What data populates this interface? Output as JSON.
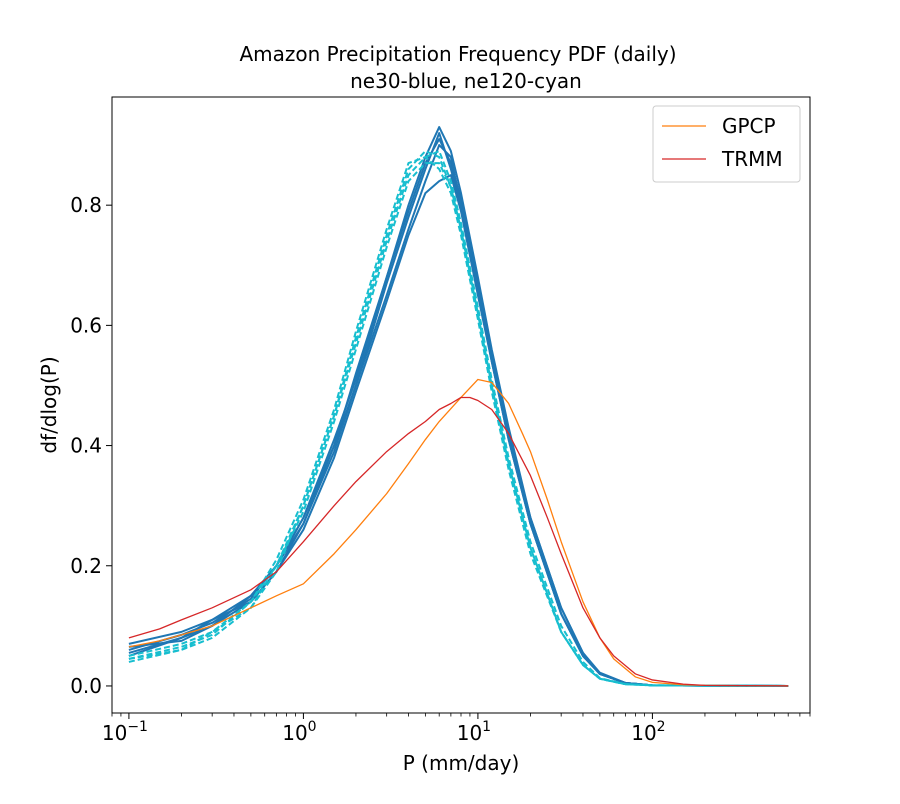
{
  "chart_data": {
    "type": "line",
    "title": "Amazon Precipitation Frequency PDF (daily)",
    "subtitle": "ne30-blue, ne120-cyan",
    "xlabel": "P (mm/day)",
    "ylabel": "df/dlog(P)",
    "xscale": "log",
    "xlim": [
      0.08,
      800
    ],
    "ylim": [
      -0.045,
      0.98
    ],
    "xticks": [
      {
        "value": 0.1,
        "base": "10",
        "exp": "−1"
      },
      {
        "value": 1,
        "base": "10",
        "exp": "0"
      },
      {
        "value": 10,
        "base": "10",
        "exp": "1"
      },
      {
        "value": 100,
        "base": "10",
        "exp": "2"
      }
    ],
    "yticks": [
      {
        "value": 0.0,
        "label": "0.0"
      },
      {
        "value": 0.2,
        "label": "0.2"
      },
      {
        "value": 0.4,
        "label": "0.4"
      },
      {
        "value": 0.6,
        "label": "0.6"
      },
      {
        "value": 0.8,
        "label": "0.8"
      }
    ],
    "legend_position": "top-right",
    "colors": {
      "GPCP": "#ff7f0e",
      "TRMM": "#d62728",
      "ne30": "#1f77b4",
      "ne120": "#17becf"
    },
    "series": [
      {
        "name": "GPCP",
        "group": "obs",
        "in_legend": true,
        "color": "#ff7f0e",
        "points": [
          [
            0.1,
            0.065
          ],
          [
            0.15,
            0.075
          ],
          [
            0.2,
            0.085
          ],
          [
            0.3,
            0.1
          ],
          [
            0.5,
            0.13
          ],
          [
            0.7,
            0.15
          ],
          [
            1.0,
            0.17
          ],
          [
            1.5,
            0.22
          ],
          [
            2.0,
            0.26
          ],
          [
            3.0,
            0.32
          ],
          [
            4.0,
            0.37
          ],
          [
            5.0,
            0.41
          ],
          [
            6.0,
            0.44
          ],
          [
            8.0,
            0.48
          ],
          [
            10.0,
            0.51
          ],
          [
            12.0,
            0.505
          ],
          [
            15.0,
            0.47
          ],
          [
            18.0,
            0.42
          ],
          [
            20.0,
            0.39
          ],
          [
            25.0,
            0.31
          ],
          [
            30.0,
            0.24
          ],
          [
            40.0,
            0.14
          ],
          [
            50.0,
            0.08
          ],
          [
            60.0,
            0.045
          ],
          [
            80.0,
            0.015
          ],
          [
            100.0,
            0.006
          ],
          [
            150.0,
            0.002
          ],
          [
            200.0,
            0.001
          ],
          [
            600.0,
            0.0
          ]
        ]
      },
      {
        "name": "TRMM",
        "group": "obs",
        "in_legend": true,
        "color": "#d62728",
        "points": [
          [
            0.1,
            0.08
          ],
          [
            0.15,
            0.095
          ],
          [
            0.2,
            0.11
          ],
          [
            0.3,
            0.13
          ],
          [
            0.5,
            0.16
          ],
          [
            0.7,
            0.19
          ],
          [
            1.0,
            0.24
          ],
          [
            1.5,
            0.3
          ],
          [
            2.0,
            0.34
          ],
          [
            3.0,
            0.39
          ],
          [
            4.0,
            0.42
          ],
          [
            5.0,
            0.44
          ],
          [
            6.0,
            0.46
          ],
          [
            7.0,
            0.47
          ],
          [
            8.0,
            0.48
          ],
          [
            9.0,
            0.48
          ],
          [
            10.0,
            0.475
          ],
          [
            12.0,
            0.46
          ],
          [
            15.0,
            0.42
          ],
          [
            20.0,
            0.35
          ],
          [
            25.0,
            0.28
          ],
          [
            30.0,
            0.22
          ],
          [
            40.0,
            0.13
          ],
          [
            50.0,
            0.08
          ],
          [
            60.0,
            0.05
          ],
          [
            80.0,
            0.02
          ],
          [
            100.0,
            0.01
          ],
          [
            150.0,
            0.003
          ],
          [
            200.0,
            0.001
          ],
          [
            600.0,
            0.0
          ]
        ]
      },
      {
        "name": "ne30 run 1",
        "group": "ne30",
        "in_legend": false,
        "color": "#1f77b4",
        "points": [
          [
            0.1,
            0.055
          ],
          [
            0.2,
            0.08
          ],
          [
            0.3,
            0.1
          ],
          [
            0.5,
            0.14
          ],
          [
            0.7,
            0.19
          ],
          [
            1.0,
            0.27
          ],
          [
            1.5,
            0.4
          ],
          [
            2.0,
            0.5
          ],
          [
            3.0,
            0.67
          ],
          [
            4.0,
            0.78
          ],
          [
            5.0,
            0.86
          ],
          [
            6.0,
            0.92
          ],
          [
            7.0,
            0.86
          ],
          [
            8.0,
            0.8
          ],
          [
            10.0,
            0.67
          ],
          [
            12.0,
            0.55
          ],
          [
            15.0,
            0.42
          ],
          [
            20.0,
            0.27
          ],
          [
            30.0,
            0.12
          ],
          [
            40.0,
            0.05
          ],
          [
            50.0,
            0.02
          ],
          [
            70.0,
            0.005
          ],
          [
            100.0,
            0.001
          ],
          [
            600.0,
            0.0
          ]
        ]
      },
      {
        "name": "ne30 run 2",
        "group": "ne30",
        "in_legend": false,
        "color": "#1f77b4",
        "points": [
          [
            0.1,
            0.06
          ],
          [
            0.2,
            0.085
          ],
          [
            0.3,
            0.105
          ],
          [
            0.5,
            0.145
          ],
          [
            0.7,
            0.2
          ],
          [
            1.0,
            0.28
          ],
          [
            1.5,
            0.41
          ],
          [
            2.0,
            0.51
          ],
          [
            3.0,
            0.68
          ],
          [
            4.0,
            0.79
          ],
          [
            5.0,
            0.87
          ],
          [
            6.0,
            0.91
          ],
          [
            7.0,
            0.87
          ],
          [
            8.0,
            0.81
          ],
          [
            10.0,
            0.67
          ],
          [
            12.0,
            0.55
          ],
          [
            15.0,
            0.42
          ],
          [
            20.0,
            0.28
          ],
          [
            30.0,
            0.13
          ],
          [
            40.0,
            0.055
          ],
          [
            50.0,
            0.022
          ],
          [
            70.0,
            0.005
          ],
          [
            100.0,
            0.001
          ],
          [
            600.0,
            0.0
          ]
        ]
      },
      {
        "name": "ne30 run 3",
        "group": "ne30",
        "in_legend": false,
        "color": "#1f77b4",
        "points": [
          [
            0.1,
            0.065
          ],
          [
            0.2,
            0.075
          ],
          [
            0.3,
            0.1
          ],
          [
            0.5,
            0.15
          ],
          [
            0.7,
            0.2
          ],
          [
            1.0,
            0.27
          ],
          [
            1.5,
            0.39
          ],
          [
            2.0,
            0.5
          ],
          [
            3.0,
            0.65
          ],
          [
            4.0,
            0.76
          ],
          [
            5.0,
            0.84
          ],
          [
            6.0,
            0.9
          ],
          [
            7.0,
            0.88
          ],
          [
            8.0,
            0.8
          ],
          [
            10.0,
            0.66
          ],
          [
            12.0,
            0.54
          ],
          [
            15.0,
            0.41
          ],
          [
            20.0,
            0.27
          ],
          [
            30.0,
            0.12
          ],
          [
            40.0,
            0.05
          ],
          [
            50.0,
            0.02
          ],
          [
            70.0,
            0.005
          ],
          [
            100.0,
            0.001
          ],
          [
            600.0,
            0.0
          ]
        ]
      },
      {
        "name": "ne30 run 4",
        "group": "ne30",
        "in_legend": false,
        "color": "#1f77b4",
        "points": [
          [
            0.1,
            0.05
          ],
          [
            0.2,
            0.08
          ],
          [
            0.3,
            0.11
          ],
          [
            0.5,
            0.14
          ],
          [
            0.7,
            0.19
          ],
          [
            1.0,
            0.26
          ],
          [
            1.5,
            0.38
          ],
          [
            2.0,
            0.49
          ],
          [
            3.0,
            0.64
          ],
          [
            4.0,
            0.75
          ],
          [
            5.0,
            0.82
          ],
          [
            6.0,
            0.84
          ],
          [
            7.0,
            0.85
          ],
          [
            8.0,
            0.79
          ],
          [
            10.0,
            0.65
          ],
          [
            12.0,
            0.54
          ],
          [
            15.0,
            0.41
          ],
          [
            20.0,
            0.27
          ],
          [
            30.0,
            0.12
          ],
          [
            40.0,
            0.05
          ],
          [
            50.0,
            0.02
          ],
          [
            70.0,
            0.005
          ],
          [
            100.0,
            0.001
          ],
          [
            600.0,
            0.0
          ]
        ]
      },
      {
        "name": "ne30 run 5",
        "group": "ne30",
        "in_legend": false,
        "color": "#1f77b4",
        "points": [
          [
            0.1,
            0.07
          ],
          [
            0.2,
            0.09
          ],
          [
            0.3,
            0.11
          ],
          [
            0.5,
            0.15
          ],
          [
            0.7,
            0.2
          ],
          [
            1.0,
            0.28
          ],
          [
            1.5,
            0.4
          ],
          [
            2.0,
            0.52
          ],
          [
            3.0,
            0.68
          ],
          [
            4.0,
            0.8
          ],
          [
            5.0,
            0.88
          ],
          [
            6.0,
            0.93
          ],
          [
            7.0,
            0.89
          ],
          [
            8.0,
            0.82
          ],
          [
            10.0,
            0.68
          ],
          [
            12.0,
            0.56
          ],
          [
            15.0,
            0.43
          ],
          [
            20.0,
            0.28
          ],
          [
            30.0,
            0.13
          ],
          [
            40.0,
            0.055
          ],
          [
            50.0,
            0.02
          ],
          [
            70.0,
            0.005
          ],
          [
            100.0,
            0.001
          ],
          [
            600.0,
            0.0
          ]
        ]
      },
      {
        "name": "ne120 run 1",
        "group": "ne120",
        "in_legend": false,
        "color": "#17becf",
        "dashed": true,
        "points": [
          [
            0.1,
            0.04
          ],
          [
            0.2,
            0.06
          ],
          [
            0.3,
            0.08
          ],
          [
            0.5,
            0.13
          ],
          [
            0.7,
            0.2
          ],
          [
            1.0,
            0.3
          ],
          [
            1.5,
            0.45
          ],
          [
            2.0,
            0.58
          ],
          [
            3.0,
            0.75
          ],
          [
            4.0,
            0.86
          ],
          [
            5.0,
            0.89
          ],
          [
            6.0,
            0.88
          ],
          [
            7.0,
            0.83
          ],
          [
            8.0,
            0.76
          ],
          [
            10.0,
            0.62
          ],
          [
            12.0,
            0.5
          ],
          [
            15.0,
            0.37
          ],
          [
            20.0,
            0.23
          ],
          [
            30.0,
            0.09
          ],
          [
            40.0,
            0.035
          ],
          [
            50.0,
            0.012
          ],
          [
            70.0,
            0.003
          ],
          [
            100.0,
            0.001
          ],
          [
            600.0,
            0.0
          ]
        ]
      },
      {
        "name": "ne120 run 2",
        "group": "ne120",
        "in_legend": false,
        "color": "#17becf",
        "dashed": true,
        "points": [
          [
            0.1,
            0.045
          ],
          [
            0.2,
            0.065
          ],
          [
            0.3,
            0.085
          ],
          [
            0.5,
            0.14
          ],
          [
            0.7,
            0.21
          ],
          [
            1.0,
            0.31
          ],
          [
            1.5,
            0.46
          ],
          [
            2.0,
            0.59
          ],
          [
            3.0,
            0.76
          ],
          [
            4.0,
            0.87
          ],
          [
            5.0,
            0.88
          ],
          [
            6.0,
            0.86
          ],
          [
            7.0,
            0.82
          ],
          [
            8.0,
            0.75
          ],
          [
            10.0,
            0.61
          ],
          [
            12.0,
            0.49
          ],
          [
            15.0,
            0.36
          ],
          [
            20.0,
            0.22
          ],
          [
            30.0,
            0.09
          ],
          [
            40.0,
            0.035
          ],
          [
            50.0,
            0.012
          ],
          [
            70.0,
            0.003
          ],
          [
            100.0,
            0.001
          ],
          [
            600.0,
            0.0
          ]
        ]
      },
      {
        "name": "ne120 run 3",
        "group": "ne120",
        "in_legend": false,
        "color": "#17becf",
        "dashed": true,
        "points": [
          [
            0.1,
            0.05
          ],
          [
            0.2,
            0.07
          ],
          [
            0.3,
            0.09
          ],
          [
            0.5,
            0.14
          ],
          [
            0.7,
            0.2
          ],
          [
            1.0,
            0.29
          ],
          [
            1.5,
            0.44
          ],
          [
            2.0,
            0.56
          ],
          [
            3.0,
            0.73
          ],
          [
            4.0,
            0.84
          ],
          [
            5.0,
            0.87
          ],
          [
            6.0,
            0.87
          ],
          [
            7.0,
            0.83
          ],
          [
            8.0,
            0.76
          ],
          [
            10.0,
            0.62
          ],
          [
            12.0,
            0.5
          ],
          [
            15.0,
            0.37
          ],
          [
            20.0,
            0.23
          ],
          [
            30.0,
            0.09
          ],
          [
            40.0,
            0.035
          ],
          [
            50.0,
            0.012
          ],
          [
            70.0,
            0.003
          ],
          [
            100.0,
            0.001
          ],
          [
            600.0,
            0.0
          ]
        ]
      },
      {
        "name": "ne120 run 4",
        "group": "ne120",
        "in_legend": false,
        "color": "#17becf",
        "dashed": true,
        "points": [
          [
            0.1,
            0.045
          ],
          [
            0.2,
            0.06
          ],
          [
            0.3,
            0.09
          ],
          [
            0.5,
            0.13
          ],
          [
            0.7,
            0.19
          ],
          [
            1.0,
            0.3
          ],
          [
            1.5,
            0.45
          ],
          [
            2.0,
            0.57
          ],
          [
            3.0,
            0.74
          ],
          [
            4.0,
            0.85
          ],
          [
            5.0,
            0.88
          ],
          [
            6.0,
            0.89
          ],
          [
            7.0,
            0.84
          ],
          [
            8.0,
            0.77
          ],
          [
            10.0,
            0.63
          ],
          [
            12.0,
            0.51
          ],
          [
            15.0,
            0.38
          ],
          [
            20.0,
            0.24
          ],
          [
            30.0,
            0.1
          ],
          [
            40.0,
            0.04
          ],
          [
            50.0,
            0.013
          ],
          [
            70.0,
            0.003
          ],
          [
            100.0,
            0.001
          ],
          [
            600.0,
            0.0
          ]
        ]
      }
    ]
  }
}
